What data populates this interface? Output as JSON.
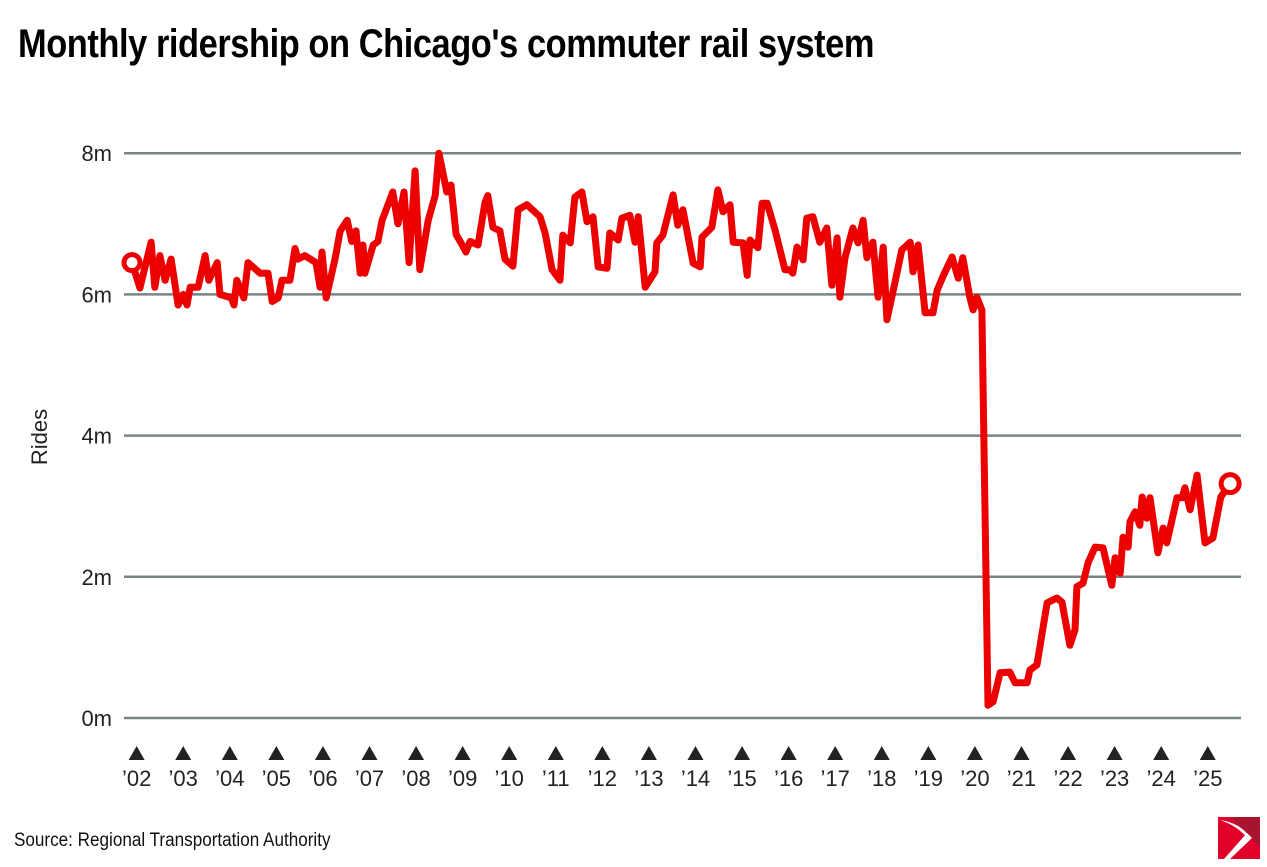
{
  "title": "Monthly ridership on Chicago's commuter rail system",
  "source": "Source: Regional Transportation Authority",
  "logo_text": "",
  "colors": {
    "line": "#ec0000",
    "grid": "#7a8486",
    "logo_light": "#e0002a",
    "logo_dark": "#a8142e"
  },
  "chart_data": {
    "type": "line",
    "title": "Monthly ridership on Chicago's commuter rail system",
    "xlabel": "",
    "ylabel": "Rides",
    "ylim": [
      0,
      8
    ],
    "xlim": [
      2002,
      2025.6
    ],
    "grid": true,
    "yticks": [
      {
        "value": 0,
        "label": "0m"
      },
      {
        "value": 2,
        "label": "2m"
      },
      {
        "value": 4,
        "label": "4m"
      },
      {
        "value": 6,
        "label": "6m"
      },
      {
        "value": 8,
        "label": "8m"
      }
    ],
    "xticks": [
      "’02",
      "’03",
      "’04",
      "’05",
      "’06",
      "’07",
      "’08",
      "’09",
      "’10",
      "’11",
      "’12",
      "’13",
      "’14",
      "’15",
      "’16",
      "’17",
      "’18",
      "’19",
      "’20",
      "’21",
      "’22",
      "’23",
      "’24",
      "’25"
    ],
    "xtick_years": [
      2002,
      2003,
      2004,
      2005,
      2006,
      2007,
      2008,
      2009,
      2010,
      2011,
      2012,
      2013,
      2014,
      2015,
      2016,
      2017,
      2018,
      2019,
      2020,
      2021,
      2022,
      2023,
      2024,
      2025
    ],
    "units": "millions of rides",
    "series": [
      {
        "name": "Monthly rides",
        "x": [
          2002.0,
          2002.17,
          2002.41,
          2002.49,
          2002.6,
          2002.71,
          2002.84,
          2002.99,
          2003.1,
          2003.18,
          2003.25,
          2003.42,
          2003.57,
          2003.65,
          2003.83,
          2003.89,
          2004.13,
          2004.19,
          2004.25,
          2004.4,
          2004.49,
          2004.75,
          2004.92,
          2005.01,
          2005.14,
          2005.22,
          2005.39,
          2005.5,
          2005.56,
          2005.71,
          2005.95,
          2006.04,
          2006.08,
          2006.17,
          2006.36,
          2006.47,
          2006.62,
          2006.72,
          2006.81,
          2006.9,
          2006.96,
          2007.0,
          2007.18,
          2007.28,
          2007.37,
          2007.6,
          2007.71,
          2007.84,
          2007.95,
          2008.08,
          2008.18,
          2008.36,
          2008.51,
          2008.59,
          2008.76,
          2008.85,
          2008.96,
          2009.09,
          2009.17,
          2009.26,
          2009.43,
          2009.58,
          2009.64,
          2009.75,
          2009.9,
          2010.01,
          2010.18,
          2010.29,
          2010.48,
          2010.76,
          2010.87,
          2011.02,
          2011.19,
          2011.25,
          2011.41,
          2011.51,
          2011.66,
          2011.77,
          2011.9,
          2012.01,
          2012.2,
          2012.26,
          2012.44,
          2012.52,
          2012.69,
          2012.8,
          2012.87,
          2013.02,
          2013.23,
          2013.27,
          2013.4,
          2013.62,
          2013.72,
          2013.83,
          2014.05,
          2014.2,
          2014.24,
          2014.45,
          2014.58,
          2014.69,
          2014.84,
          2014.91,
          2015.12,
          2015.21,
          2015.27,
          2015.44,
          2015.53,
          2015.64,
          2015.81,
          2016.02,
          2016.13,
          2016.19,
          2016.28,
          2016.41,
          2016.49,
          2016.62,
          2016.77,
          2016.92,
          2017.03,
          2017.14,
          2017.2,
          2017.31,
          2017.48,
          2017.59,
          2017.7,
          2017.78,
          2017.91,
          2018.02,
          2018.13,
          2018.21,
          2018.38,
          2018.53,
          2018.71,
          2018.77,
          2018.88,
          2019.03,
          2019.2,
          2019.29,
          2019.41,
          2019.61,
          2019.74,
          2019.84,
          2019.99,
          2020.06,
          2020.14,
          2020.25,
          2020.38,
          2020.49,
          2020.64,
          2020.85,
          2020.96,
          2021.22,
          2021.28,
          2021.43,
          2021.65,
          2021.86,
          2021.97,
          2022.14,
          2022.25,
          2022.29,
          2022.42,
          2022.53,
          2022.68,
          2022.85,
          2023.04,
          2023.11,
          2023.22,
          2023.28,
          2023.39,
          2023.43,
          2023.54,
          2023.64,
          2023.69,
          2023.79,
          2023.86,
          2024.03,
          2024.14,
          2024.22,
          2024.44,
          2024.55,
          2024.61,
          2024.72,
          2024.87,
          2025.04,
          2025.21,
          2025.38,
          2025.58
        ],
        "y": [
          6.45,
          6.09,
          6.74,
          6.1,
          6.55,
          6.2,
          6.5,
          5.85,
          6.0,
          5.85,
          6.1,
          6.1,
          6.55,
          6.2,
          6.45,
          6.0,
          5.95,
          5.85,
          6.2,
          5.95,
          6.45,
          6.3,
          6.3,
          5.9,
          5.95,
          6.2,
          6.2,
          6.65,
          6.5,
          6.55,
          6.45,
          6.1,
          6.6,
          5.95,
          6.5,
          6.9,
          7.05,
          6.75,
          6.9,
          6.3,
          6.7,
          6.3,
          6.7,
          6.75,
          7.05,
          7.45,
          7.0,
          7.45,
          6.45,
          7.75,
          6.35,
          7.05,
          7.4,
          8.0,
          7.45,
          7.55,
          6.85,
          6.7,
          6.6,
          6.75,
          6.7,
          7.3,
          7.4,
          6.95,
          6.9,
          6.5,
          6.4,
          7.2,
          7.27,
          7.1,
          6.87,
          6.35,
          6.2,
          6.84,
          6.73,
          7.38,
          7.45,
          7.03,
          7.1,
          6.39,
          6.37,
          6.87,
          6.77,
          7.08,
          7.12,
          6.74,
          7.1,
          6.1,
          6.32,
          6.73,
          6.84,
          7.41,
          6.98,
          7.2,
          6.44,
          6.39,
          6.81,
          6.95,
          7.48,
          7.17,
          7.27,
          6.74,
          6.73,
          6.27,
          6.77,
          6.66,
          7.29,
          7.29,
          6.91,
          6.35,
          6.35,
          6.3,
          6.67,
          6.49,
          7.08,
          7.1,
          6.74,
          6.94,
          6.13,
          6.8,
          5.96,
          6.52,
          6.94,
          6.73,
          7.05,
          6.52,
          6.74,
          5.96,
          6.67,
          5.64,
          6.16,
          6.63,
          6.74,
          6.32,
          6.7,
          5.74,
          5.74,
          6.06,
          6.25,
          6.53,
          6.23,
          6.52,
          5.96,
          5.78,
          5.96,
          5.78,
          0.18,
          0.23,
          0.64,
          0.65,
          0.5,
          0.5,
          0.68,
          0.75,
          1.63,
          1.7,
          1.64,
          1.03,
          1.25,
          1.86,
          1.91,
          2.2,
          2.42,
          2.41,
          1.88,
          2.27,
          2.05,
          2.56,
          2.42,
          2.78,
          2.92,
          2.73,
          3.13,
          2.83,
          3.12,
          2.34,
          2.69,
          2.48,
          3.12,
          3.12,
          3.26,
          2.95,
          3.44,
          2.48,
          2.55,
          3.13,
          3.32
        ]
      }
    ]
  }
}
